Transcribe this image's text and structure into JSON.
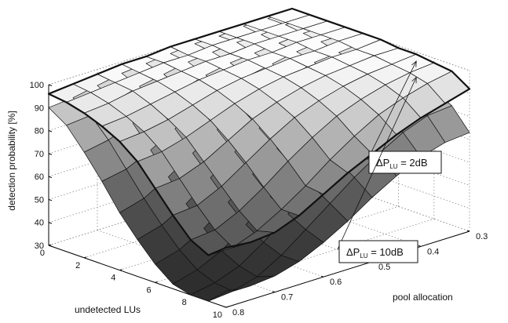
{
  "chart_data": {
    "type": "surface",
    "zlabel": "detection probability [%]",
    "xlabel": "undetected LUs",
    "ylabel": "pool allocation",
    "xlim": [
      0,
      10
    ],
    "ylim": [
      0.3,
      0.8
    ],
    "zlim": [
      30,
      100
    ],
    "x_ticks": [
      "0",
      "2",
      "4",
      "6",
      "8",
      "10"
    ],
    "y_ticks": [
      "0.3",
      "0.4",
      "0.5",
      "0.6",
      "0.7",
      "0.8"
    ],
    "z_ticks": [
      "30",
      "40",
      "50",
      "60",
      "70",
      "80",
      "90",
      "100"
    ],
    "grid": true,
    "x": [
      0,
      1,
      2,
      3,
      4,
      5,
      6,
      7,
      8,
      9,
      10
    ],
    "y": [
      0.3,
      0.35,
      0.4,
      0.45,
      0.5,
      0.55,
      0.6,
      0.65,
      0.7,
      0.75,
      0.8
    ],
    "series": [
      {
        "name": "ΔP_LU = 2dB",
        "z": [
          [
            100,
            100,
            100,
            100,
            100,
            100,
            99,
            99,
            98,
            97,
            96
          ],
          [
            100,
            100,
            100,
            100,
            100,
            99,
            99,
            98,
            97,
            96,
            95
          ],
          [
            100,
            100,
            100,
            100,
            99,
            99,
            98,
            97,
            96,
            94,
            93
          ],
          [
            100,
            100,
            100,
            99,
            99,
            98,
            97,
            95,
            93,
            91,
            90
          ],
          [
            100,
            100,
            99,
            99,
            98,
            97,
            95,
            92,
            89,
            87,
            86
          ],
          [
            100,
            99,
            99,
            98,
            97,
            95,
            92,
            88,
            84,
            81,
            80
          ],
          [
            99,
            99,
            98,
            97,
            95,
            92,
            88,
            82,
            76,
            72,
            71
          ],
          [
            99,
            98,
            97,
            95,
            92,
            88,
            82,
            75,
            68,
            63,
            62
          ],
          [
            98,
            97,
            95,
            92,
            88,
            82,
            75,
            67,
            60,
            55,
            54
          ],
          [
            97,
            95,
            92,
            88,
            82,
            75,
            67,
            60,
            54,
            50,
            50
          ],
          [
            92,
            89,
            86,
            82,
            77,
            72,
            66,
            60,
            56,
            55,
            56
          ]
        ]
      },
      {
        "name": "ΔP_LU = 10dB",
        "z": [
          [
            99,
            99,
            99,
            98,
            98,
            97,
            96,
            95,
            93,
            91,
            90
          ],
          [
            99,
            99,
            98,
            98,
            97,
            96,
            94,
            92,
            89,
            86,
            85
          ],
          [
            98,
            98,
            97,
            96,
            95,
            93,
            90,
            86,
            82,
            78,
            76
          ],
          [
            97,
            97,
            96,
            94,
            92,
            89,
            85,
            79,
            73,
            68,
            66
          ],
          [
            96,
            95,
            94,
            91,
            88,
            84,
            78,
            71,
            64,
            58,
            55
          ],
          [
            94,
            93,
            91,
            88,
            84,
            78,
            71,
            63,
            55,
            49,
            46
          ],
          [
            92,
            91,
            88,
            84,
            79,
            72,
            64,
            55,
            47,
            41,
            38
          ],
          [
            89,
            88,
            85,
            80,
            74,
            66,
            57,
            48,
            40,
            35,
            32
          ],
          [
            86,
            85,
            81,
            76,
            69,
            61,
            52,
            43,
            36,
            32,
            30
          ],
          [
            82,
            81,
            77,
            71,
            64,
            56,
            48,
            40,
            34,
            31,
            30
          ],
          [
            73,
            72,
            69,
            64,
            58,
            51,
            45,
            40,
            37,
            36,
            37
          ]
        ]
      }
    ],
    "annotations": [
      {
        "text_main": "ΔP",
        "text_sub": "LU",
        "text_rest": " = 2dB",
        "target_series": 0
      },
      {
        "text_main": "ΔP",
        "text_sub": "LU",
        "text_rest": " = 10dB",
        "target_series": 1
      }
    ]
  }
}
